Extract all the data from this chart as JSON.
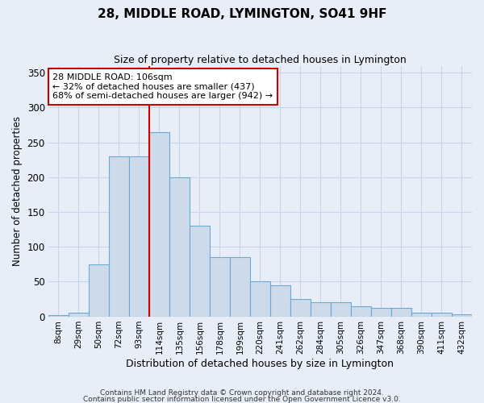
{
  "title": "28, MIDDLE ROAD, LYMINGTON, SO41 9HF",
  "subtitle": "Size of property relative to detached houses in Lymington",
  "xlabel": "Distribution of detached houses by size in Lymington",
  "ylabel": "Number of detached properties",
  "bar_labels": [
    "8sqm",
    "29sqm",
    "50sqm",
    "72sqm",
    "93sqm",
    "114sqm",
    "135sqm",
    "156sqm",
    "178sqm",
    "199sqm",
    "220sqm",
    "241sqm",
    "262sqm",
    "284sqm",
    "305sqm",
    "326sqm",
    "347sqm",
    "368sqm",
    "390sqm",
    "411sqm",
    "432sqm"
  ],
  "bar_values": [
    2,
    5,
    75,
    230,
    230,
    265,
    200,
    130,
    85,
    85,
    50,
    45,
    25,
    20,
    20,
    15,
    12,
    12,
    5,
    5,
    3
  ],
  "bar_color": "#ccdaea",
  "bar_edge_color": "#6aaad4",
  "grid_color": "#c8d4e8",
  "bg_color": "#e8eef8",
  "plot_bg_color": "#e8eef8",
  "vline_x": 4.5,
  "vline_color": "#cc0000",
  "annotation_line1": "28 MIDDLE ROAD: 106sqm",
  "annotation_line2": "← 32% of detached houses are smaller (437)",
  "annotation_line3": "68% of semi-detached houses are larger (942) →",
  "annotation_box_color": "#ffffff",
  "annotation_box_edge": "#cc0000",
  "ylim": [
    0,
    360
  ],
  "yticks": [
    0,
    50,
    100,
    150,
    200,
    250,
    300,
    350
  ],
  "footer1": "Contains HM Land Registry data © Crown copyright and database right 2024.",
  "footer2": "Contains public sector information licensed under the Open Government Licence v3.0."
}
